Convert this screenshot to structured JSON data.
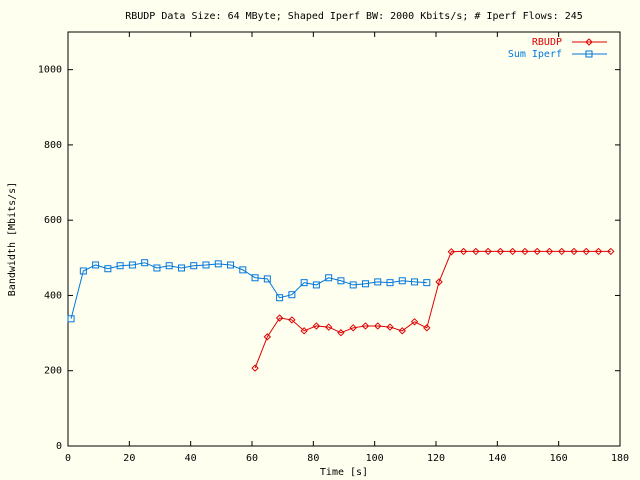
{
  "chart_data": {
    "type": "line",
    "title": "RBUDP Data Size: 64 MByte; Shaped Iperf BW: 2000 Kbits/s; # Iperf Flows: 245",
    "x_label": "Time [s]",
    "y_label": "Bandwidth [Mbits/s]",
    "xlim": [
      0,
      180
    ],
    "xticks": [
      0,
      20,
      40,
      60,
      80,
      100,
      120,
      140,
      160,
      180
    ],
    "ylim": [
      0,
      1100
    ],
    "yticks": [
      0,
      200,
      400,
      600,
      800,
      1000
    ],
    "legend": "top-right",
    "series": [
      {
        "name": "RBUDP",
        "color": "#dd0000",
        "marker": "diamond",
        "x": [
          61,
          65,
          69,
          73,
          77,
          81,
          85,
          89,
          93,
          97,
          101,
          105,
          109,
          113,
          117,
          121,
          125,
          129,
          133,
          137,
          141,
          145,
          149,
          153,
          157,
          161,
          165,
          169,
          173,
          177
        ],
        "values": [
          207,
          290,
          340,
          335,
          306,
          319,
          316,
          301,
          314,
          319,
          319,
          316,
          306,
          330,
          314,
          436,
          516,
          517,
          517,
          517,
          517,
          517,
          517,
          517,
          517,
          517,
          517,
          517,
          517,
          517
        ]
      },
      {
        "name": "Sum Iperf",
        "color": "#0077dd",
        "marker": "square",
        "x": [
          1,
          5,
          9,
          13,
          17,
          21,
          25,
          29,
          33,
          37,
          41,
          45,
          49,
          53,
          57,
          61,
          65,
          69,
          73,
          77,
          81,
          85,
          89,
          93,
          97,
          101,
          105,
          109,
          113,
          117
        ],
        "values": [
          338,
          465,
          481,
          471,
          479,
          481,
          487,
          473,
          479,
          473,
          479,
          481,
          484,
          481,
          468,
          447,
          444,
          394,
          402,
          434,
          428,
          447,
          439,
          428,
          431,
          436,
          434,
          439,
          436,
          434
        ]
      }
    ]
  }
}
